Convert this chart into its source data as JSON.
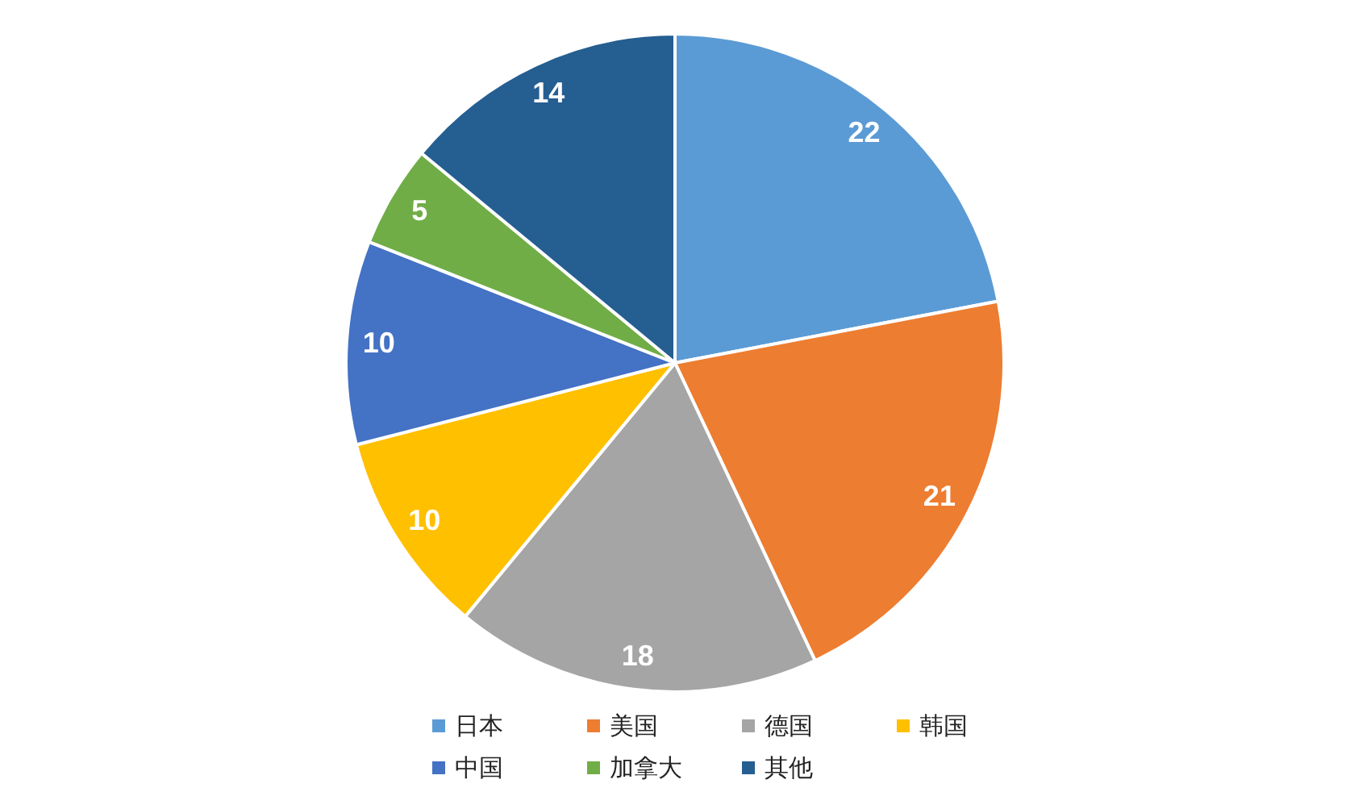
{
  "chart_data": {
    "type": "pie",
    "categories": [
      "日本",
      "美国",
      "德国",
      "韩国",
      "中国",
      "加拿大",
      "其他"
    ],
    "values": [
      22,
      21,
      18,
      10,
      10,
      5,
      14
    ],
    "colors": [
      "#5b9bd5",
      "#ed7d31",
      "#a5a5a5",
      "#ffc000",
      "#4472c4",
      "#70ad47",
      "#255e91"
    ],
    "data_labels": true,
    "legend": "bottom"
  }
}
